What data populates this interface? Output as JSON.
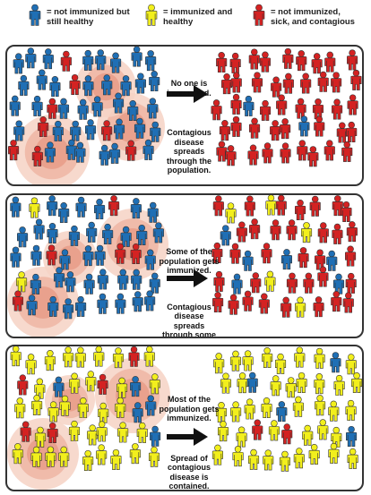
{
  "legend": [
    {
      "label": "= not immunized but\nstill healthy",
      "color": "#1f6fb5"
    },
    {
      "label": "= immunized and\nhealthy",
      "color": "#f2ef1c"
    },
    {
      "label": "= not immunized,\nsick, and contagious",
      "color": "#d42222"
    }
  ],
  "panels": [
    {
      "caption": [
        "No one is immunized.",
        "Contagious disease spreads through the population."
      ],
      "left_mix": {
        "blue": 0.84,
        "yellow": 0.0,
        "red": 0.16
      },
      "right_mix": {
        "blue": 0.06,
        "yellow": 0.0,
        "red": 0.94
      }
    },
    {
      "caption": [
        "Some of the population gets immunized.",
        "Contagious disease spreads through some of the population."
      ],
      "left_mix": {
        "blue": 0.7,
        "yellow": 0.18,
        "red": 0.12
      },
      "right_mix": {
        "blue": 0.12,
        "yellow": 0.12,
        "red": 0.76
      }
    },
    {
      "caption": [
        "Most of the population gets immunized.",
        "Spread of contagious disease is contained."
      ],
      "left_mix": {
        "blue": 0.1,
        "yellow": 0.8,
        "red": 0.1
      },
      "right_mix": {
        "blue": 0.08,
        "yellow": 0.84,
        "red": 0.08
      }
    }
  ],
  "icons": {
    "person": "person-icon",
    "arrow": "right-arrow-icon",
    "infection_zone": "infection-zone-circle"
  }
}
